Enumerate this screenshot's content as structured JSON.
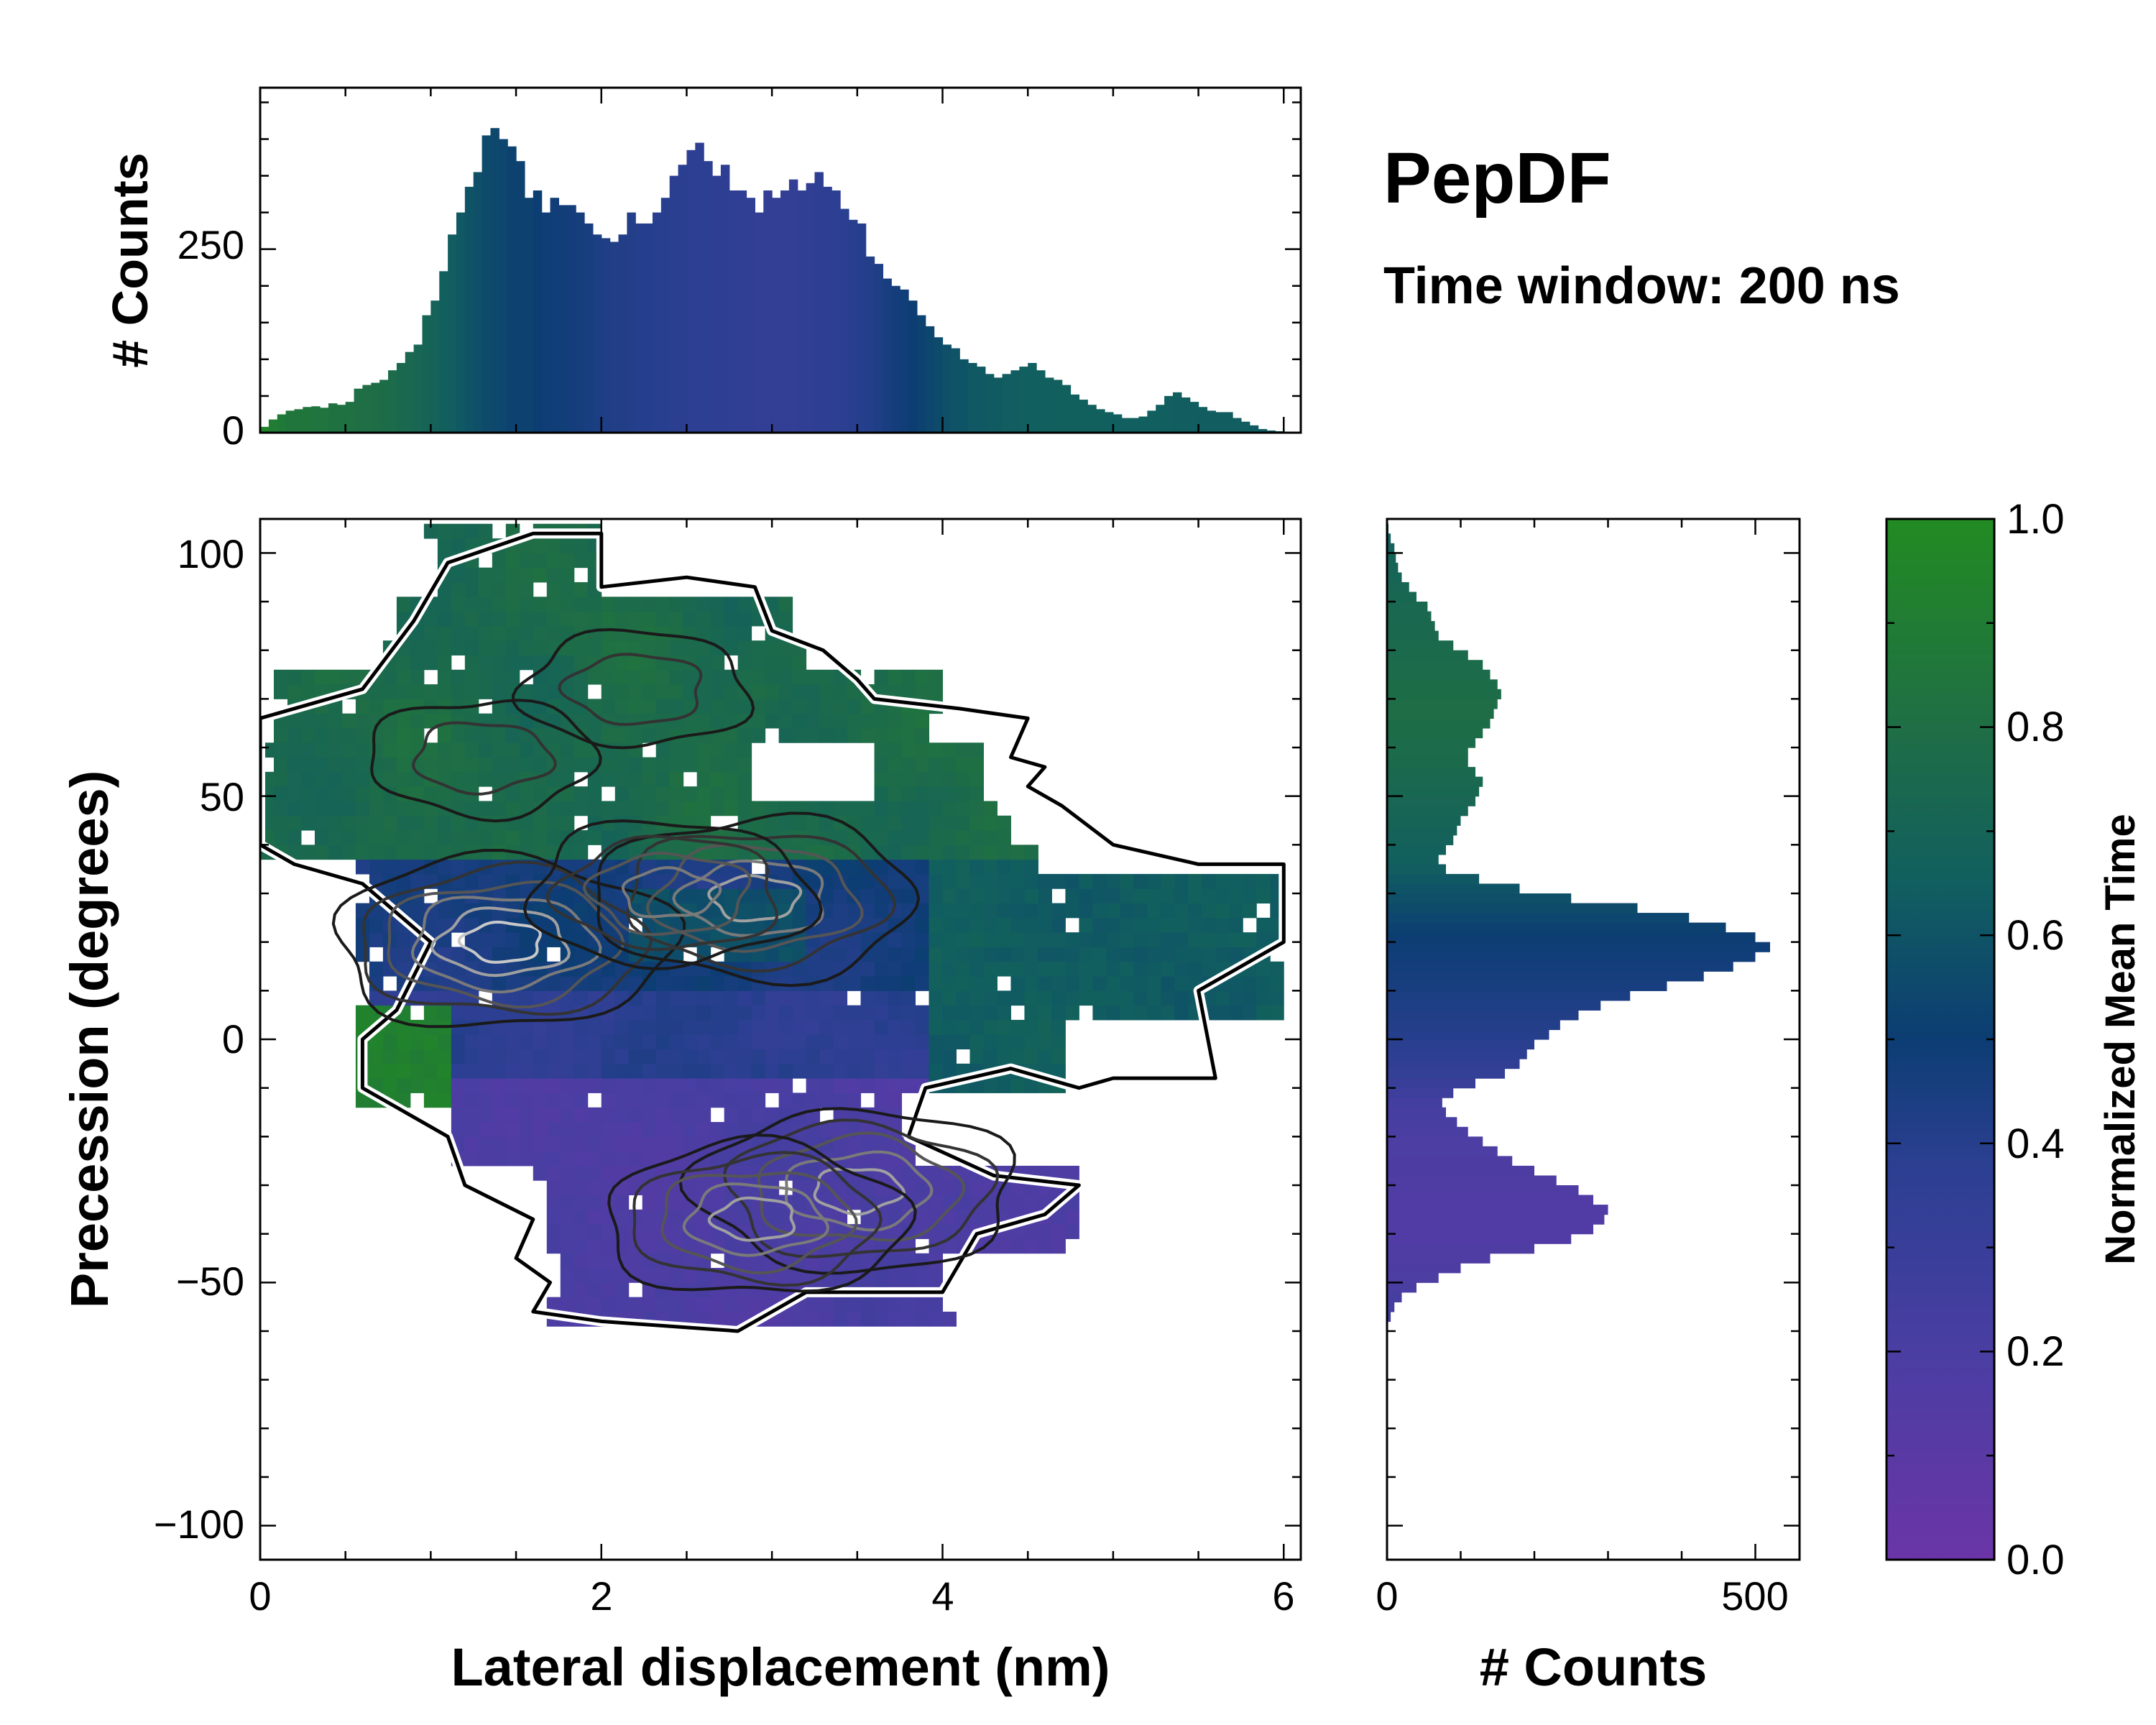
{
  "chart_data": [
    {
      "id": "top-histogram",
      "type": "bar",
      "orientation": "vertical",
      "ylabel": "# Counts",
      "xlim": [
        0,
        6.1
      ],
      "ylim": [
        0,
        470
      ],
      "yticks": [
        0,
        250
      ],
      "ytick_labels": [
        "0",
        "250"
      ],
      "bin_width": 0.05,
      "x": [
        0.025,
        0.075,
        0.125,
        0.175,
        0.225,
        0.275,
        0.325,
        0.375,
        0.425,
        0.475,
        0.525,
        0.575,
        0.625,
        0.675,
        0.725,
        0.775,
        0.825,
        0.875,
        0.925,
        0.975,
        1.025,
        1.075,
        1.125,
        1.175,
        1.225,
        1.275,
        1.325,
        1.375,
        1.425,
        1.475,
        1.525,
        1.575,
        1.625,
        1.675,
        1.725,
        1.775,
        1.825,
        1.875,
        1.925,
        1.975,
        2.025,
        2.075,
        2.125,
        2.175,
        2.225,
        2.275,
        2.325,
        2.375,
        2.425,
        2.475,
        2.525,
        2.575,
        2.625,
        2.675,
        2.725,
        2.775,
        2.825,
        2.875,
        2.925,
        2.975,
        3.025,
        3.075,
        3.125,
        3.175,
        3.225,
        3.275,
        3.325,
        3.375,
        3.425,
        3.475,
        3.525,
        3.575,
        3.625,
        3.675,
        3.725,
        3.775,
        3.825,
        3.875,
        3.925,
        3.975,
        4.025,
        4.075,
        4.125,
        4.175,
        4.225,
        4.275,
        4.325,
        4.375,
        4.425,
        4.475,
        4.525,
        4.575,
        4.625,
        4.675,
        4.725,
        4.775,
        4.825,
        4.875,
        4.925,
        4.975,
        5.025,
        5.075,
        5.125,
        5.175,
        5.225,
        5.275,
        5.325,
        5.375,
        5.425,
        5.475,
        5.525,
        5.575,
        5.625,
        5.675,
        5.725,
        5.775,
        5.825,
        5.875,
        5.925,
        5.975,
        6.025,
        6.075
      ],
      "values": [
        8,
        18,
        25,
        30,
        32,
        35,
        36,
        34,
        40,
        38,
        42,
        60,
        65,
        68,
        72,
        85,
        95,
        110,
        120,
        160,
        180,
        220,
        270,
        300,
        335,
        355,
        405,
        415,
        400,
        390,
        370,
        320,
        330,
        300,
        320,
        310,
        310,
        300,
        285,
        270,
        265,
        260,
        270,
        300,
        285,
        285,
        300,
        320,
        350,
        365,
        385,
        395,
        370,
        350,
        365,
        330,
        330,
        320,
        300,
        330,
        320,
        330,
        345,
        330,
        340,
        355,
        335,
        330,
        305,
        290,
        285,
        240,
        230,
        210,
        200,
        195,
        180,
        160,
        145,
        130,
        120,
        115,
        100,
        95,
        90,
        80,
        75,
        80,
        85,
        90,
        95,
        85,
        75,
        72,
        65,
        52,
        45,
        38,
        32,
        28,
        25,
        20,
        20,
        22,
        30,
        38,
        50,
        55,
        48,
        42,
        35,
        30,
        28,
        28,
        20,
        15,
        10,
        5,
        3,
        2,
        1,
        0
      ],
      "value_color": [
        0.95,
        0.9,
        0.88,
        0.85,
        0.85,
        0.85,
        0.84,
        0.84,
        0.83,
        0.82,
        0.82,
        0.8,
        0.8,
        0.79,
        0.78,
        0.77,
        0.75,
        0.74,
        0.72,
        0.7,
        0.68,
        0.66,
        0.64,
        0.62,
        0.6,
        0.58,
        0.56,
        0.55,
        0.54,
        0.52,
        0.52,
        0.52,
        0.5,
        0.49,
        0.48,
        0.48,
        0.47,
        0.46,
        0.45,
        0.44,
        0.43,
        0.42,
        0.42,
        0.41,
        0.4,
        0.4,
        0.39,
        0.39,
        0.38,
        0.38,
        0.37,
        0.37,
        0.37,
        0.36,
        0.36,
        0.35,
        0.35,
        0.35,
        0.34,
        0.34,
        0.34,
        0.34,
        0.34,
        0.35,
        0.35,
        0.36,
        0.36,
        0.37,
        0.38,
        0.39,
        0.4,
        0.41,
        0.43,
        0.45,
        0.47,
        0.48,
        0.5,
        0.52,
        0.54,
        0.56,
        0.58,
        0.6,
        0.6,
        0.62,
        0.62,
        0.63,
        0.63,
        0.64,
        0.64,
        0.65,
        0.65,
        0.65,
        0.66,
        0.66,
        0.66,
        0.66,
        0.66,
        0.66,
        0.66,
        0.65,
        0.65,
        0.65,
        0.65,
        0.65,
        0.65,
        0.65,
        0.65,
        0.64,
        0.64,
        0.64,
        0.64,
        0.64,
        0.64,
        0.64,
        0.64,
        0.64,
        0.63,
        0.63,
        0.63,
        0.63,
        0.63,
        0.63
      ]
    },
    {
      "id": "main-heatmap",
      "type": "heatmap",
      "xlabel": "Lateral displacement (nm)",
      "ylabel": "Precession (degrees)",
      "xlim": [
        0,
        6.1
      ],
      "ylim": [
        -107,
        107
      ],
      "xticks": [
        0,
        2,
        4,
        6
      ],
      "xtick_labels": [
        "0",
        "2",
        "4",
        "6"
      ],
      "yticks": [
        -100,
        -50,
        0,
        50,
        100
      ],
      "ytick_labels": [
        "−100",
        "−50",
        "0",
        "50",
        "100"
      ],
      "cell_size": {
        "dx": 0.08,
        "dy": 3
      },
      "occupied_region_lobes_data_units": [
        {
          "name": "upper",
          "x": [
            0.0,
            4.5
          ],
          "y": [
            36,
            106
          ],
          "mean_time": 0.78
        },
        {
          "name": "middle",
          "x": [
            0.6,
            6.0
          ],
          "y": [
            -10,
            40
          ],
          "mean_time": 0.45
        },
        {
          "name": "lower",
          "x": [
            1.2,
            4.9
          ],
          "y": [
            -60,
            -5
          ],
          "mean_time": 0.2
        },
        {
          "name": "right-tail",
          "x": [
            3.8,
            6.0
          ],
          "y": [
            -10,
            35
          ],
          "mean_time": 0.65
        }
      ],
      "density_peaks": [
        {
          "x": 1.42,
          "y": 20,
          "weight": 1.0
        },
        {
          "x": 2.9,
          "y": 29,
          "weight": 0.9
        },
        {
          "x": 2.4,
          "y": 30,
          "weight": 0.7
        },
        {
          "x": 3.5,
          "y": -31,
          "weight": 0.9
        },
        {
          "x": 2.9,
          "y": -37,
          "weight": 0.8
        },
        {
          "x": 1.3,
          "y": 58,
          "weight": 0.4
        },
        {
          "x": 2.2,
          "y": 72,
          "weight": 0.4
        }
      ],
      "contour_levels": 6
    },
    {
      "id": "right-histogram",
      "type": "bar",
      "orientation": "horizontal",
      "xlabel": "# Counts",
      "xlim": [
        0,
        560
      ],
      "xticks": [
        0,
        500
      ],
      "xtick_labels": [
        "0",
        "500"
      ],
      "ylim": [
        -107,
        107
      ],
      "bin_height": 2,
      "y": [
        -57,
        -55,
        -53,
        -51,
        -49,
        -47,
        -45,
        -43,
        -41,
        -39,
        -37,
        -35,
        -33,
        -31,
        -29,
        -27,
        -25,
        -23,
        -21,
        -19,
        -17,
        -15,
        -13,
        -11,
        -9,
        -7,
        -5,
        -3,
        -1,
        1,
        3,
        5,
        7,
        9,
        11,
        13,
        15,
        17,
        19,
        21,
        23,
        25,
        27,
        29,
        31,
        33,
        35,
        37,
        39,
        41,
        43,
        45,
        47,
        49,
        51,
        53,
        55,
        57,
        59,
        61,
        63,
        65,
        67,
        69,
        71,
        73,
        75,
        77,
        79,
        81,
        83,
        85,
        87,
        89,
        91,
        93,
        95,
        97,
        99,
        101,
        103,
        105
      ],
      "values": [
        5,
        10,
        20,
        40,
        70,
        100,
        140,
        200,
        250,
        280,
        295,
        300,
        280,
        260,
        230,
        200,
        170,
        150,
        130,
        110,
        95,
        80,
        75,
        90,
        120,
        160,
        180,
        190,
        200,
        220,
        235,
        260,
        290,
        330,
        380,
        430,
        470,
        500,
        520,
        500,
        460,
        410,
        340,
        250,
        180,
        125,
        80,
        70,
        80,
        90,
        95,
        100,
        110,
        120,
        125,
        130,
        120,
        110,
        110,
        120,
        130,
        140,
        145,
        150,
        155,
        150,
        140,
        130,
        110,
        90,
        70,
        65,
        60,
        55,
        40,
        30,
        20,
        15,
        12,
        10,
        5,
        2
      ],
      "value_color": [
        0.25,
        0.24,
        0.22,
        0.2,
        0.19,
        0.18,
        0.17,
        0.17,
        0.16,
        0.16,
        0.16,
        0.16,
        0.16,
        0.17,
        0.17,
        0.18,
        0.18,
        0.19,
        0.19,
        0.2,
        0.21,
        0.22,
        0.24,
        0.27,
        0.3,
        0.33,
        0.35,
        0.37,
        0.38,
        0.4,
        0.41,
        0.42,
        0.43,
        0.44,
        0.45,
        0.46,
        0.47,
        0.48,
        0.49,
        0.5,
        0.52,
        0.54,
        0.56,
        0.58,
        0.6,
        0.62,
        0.64,
        0.66,
        0.67,
        0.68,
        0.69,
        0.7,
        0.71,
        0.72,
        0.73,
        0.74,
        0.75,
        0.76,
        0.77,
        0.77,
        0.78,
        0.78,
        0.79,
        0.79,
        0.78,
        0.78,
        0.77,
        0.77,
        0.76,
        0.76,
        0.75,
        0.75,
        0.74,
        0.74,
        0.73,
        0.72,
        0.71,
        0.7,
        0.69,
        0.68,
        0.67,
        0.66
      ]
    },
    {
      "id": "colorbar",
      "type": "colorbar",
      "label": "Normalized Mean Time",
      "range": [
        0,
        1
      ],
      "ticks": [
        0,
        0.2,
        0.4,
        0.6,
        0.8,
        1.0
      ],
      "tick_labels": [
        "0.0",
        "0.2",
        "0.4",
        "0.6",
        "0.8",
        "1.0"
      ],
      "colormap_stops": [
        {
          "v": 0.0,
          "color": "#6a35a6"
        },
        {
          "v": 0.2,
          "color": "#4a3ea3"
        },
        {
          "v": 0.38,
          "color": "#2b3f91"
        },
        {
          "v": 0.5,
          "color": "#0c3d73"
        },
        {
          "v": 0.65,
          "color": "#115f5f"
        },
        {
          "v": 0.8,
          "color": "#1f6e45"
        },
        {
          "v": 1.0,
          "color": "#228b22"
        }
      ]
    }
  ],
  "annotations": {
    "title": "PepDF",
    "subtitle": "Time window: 200 ns"
  },
  "colors": {
    "axes": "#000000",
    "contour_outer": "#000000",
    "contour_halo": "#ffffff"
  }
}
